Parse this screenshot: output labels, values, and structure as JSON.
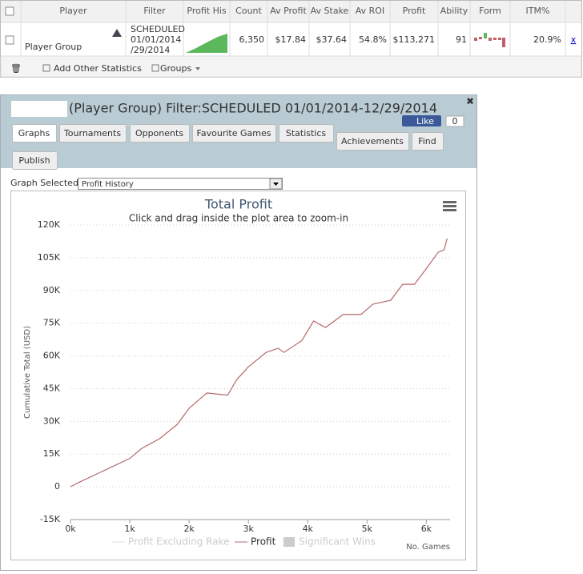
{
  "table": {
    "headers": [
      "Player",
      "Filter",
      "Profit His",
      "Count",
      "Av Profit",
      "Av Stake",
      "Av ROI",
      "Profit",
      "Ability",
      "Form",
      "ITM%"
    ],
    "row": {
      "player": "Player Group",
      "filter": [
        "SCHEDULED",
        "01/01/2014",
        "/29/2014"
      ],
      "cells": [
        "6,350",
        "$17.84",
        "$37.64",
        "54.8%",
        "$113,271",
        "91"
      ],
      "itm": "20.9%",
      "remove": "x"
    }
  },
  "toolbar": {
    "add": "Add Other Statistics",
    "groups": "Groups"
  },
  "dialog": {
    "title": "(Player Group) Filter:SCHEDULED 01/01/2014-12/29/2014",
    "like": "Like",
    "like_count": "0",
    "tabs": [
      "Graphs",
      "Tournaments",
      "Opponents",
      "Favourite Games",
      "Statistics",
      "Achievements",
      "Find",
      "Publish"
    ],
    "graph_selected_label": "Graph Selected:",
    "graph_selected": "Profit History"
  },
  "chart_data": {
    "type": "line",
    "title": "Total Profit",
    "subtitle": "Click and drag inside the plot area to zoom-in",
    "y_label": "Cumulative Total (USD)",
    "x_label": "No. Games",
    "x": [
      0,
      100,
      500,
      1000,
      1200,
      1500,
      1800,
      2000,
      2300,
      2650,
      2800,
      3000,
      3300,
      3500,
      3600,
      3900,
      4100,
      4300,
      4600,
      4900,
      5100,
      5400,
      5600,
      5800,
      6000,
      6200,
      6300,
      6350
    ],
    "series": [
      {
        "name": "Profit",
        "color": "#b56a6a",
        "values": [
          0,
          1500,
          6600,
          13000,
          17600,
          22000,
          28600,
          36000,
          43000,
          42000,
          49000,
          55000,
          61600,
          63500,
          61600,
          67000,
          76000,
          73000,
          79000,
          79000,
          83700,
          85500,
          92800,
          92800,
          100000,
          107500,
          108600,
          113800
        ]
      }
    ],
    "hidden_series": [
      "Profit Excluding Rake",
      "Significant Wins"
    ],
    "xlim": [
      0,
      6400
    ],
    "xticks": [
      {
        "value": 0,
        "label": "0k"
      },
      {
        "value": 1000,
        "label": "1k"
      },
      {
        "value": 2000,
        "label": "2k"
      },
      {
        "value": 3000,
        "label": "3k"
      },
      {
        "value": 4000,
        "label": "4k"
      },
      {
        "value": 5000,
        "label": "5k"
      },
      {
        "value": 6000,
        "label": "6k"
      }
    ],
    "ylim": [
      -15000,
      120000
    ],
    "yticks": [
      {
        "value": -15000,
        "label": "-15K"
      },
      0,
      {
        "value": 15000,
        "label": "15K"
      },
      {
        "value": 30000,
        "label": "30K"
      },
      {
        "value": 45000,
        "label": "45K"
      },
      {
        "value": 60000,
        "label": "60K"
      },
      {
        "value": 75000,
        "label": "75K"
      },
      {
        "value": 90000,
        "label": "90K"
      },
      {
        "value": 105000,
        "label": "105K"
      },
      {
        "value": 120000,
        "label": "120K"
      }
    ],
    "grid": true
  }
}
